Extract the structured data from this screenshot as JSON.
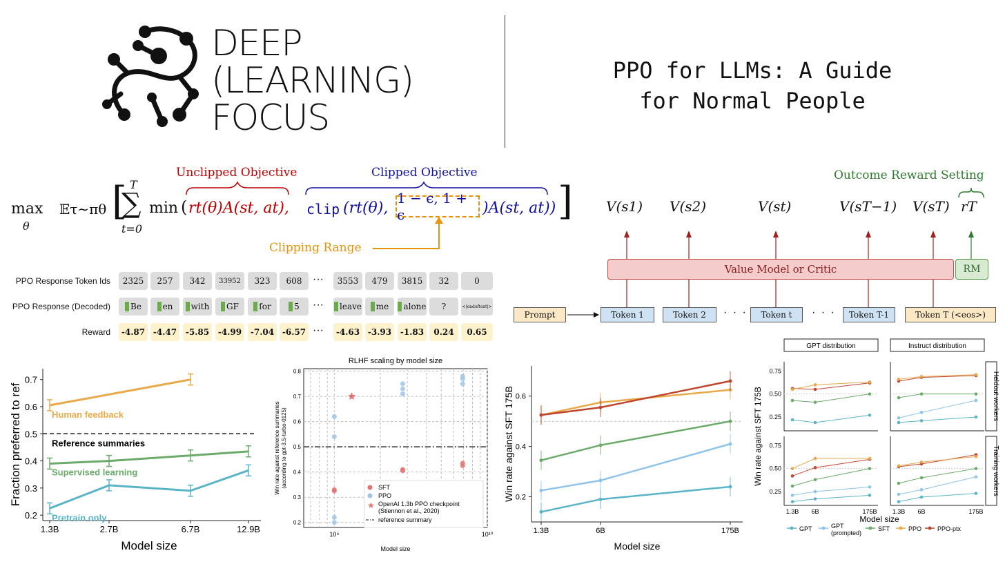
{
  "brand": {
    "logo_lines": [
      "DEEP",
      "(LEARNING)",
      "FOCUS"
    ]
  },
  "title": {
    "line1": "PPO for LLMs: A Guide",
    "line2": "for Normal People"
  },
  "objective": {
    "max": "max",
    "theta": "θ",
    "expectation": "𝔼τ∼πθ",
    "sum_top": "T",
    "sum_bottom": "t=0",
    "min": "min",
    "unclipped_term": "rt(θ)A(st, at),",
    "clip_fn": "clip",
    "clip_arg": "(rt(θ),",
    "clip_range": "1 − ϵ, 1 + ϵ",
    "clipped_tail": ")A(st, at))",
    "unclipped_label": "Unclipped Objective",
    "clipped_label": "Clipped Objective",
    "clipping_range_label": "Clipping Range"
  },
  "tokens": {
    "ids_label": "PPO Response Token Ids",
    "decoded_label": "PPO Response (Decoded)",
    "reward_label": "Reward",
    "ellipsis": "···",
    "ids": [
      "2325",
      "257",
      "342",
      "33952",
      "323",
      "608",
      "3553",
      "479",
      "3815",
      "32",
      "0"
    ],
    "decoded": [
      "Be",
      "en",
      "with",
      "GF",
      "for",
      "5",
      "leave",
      "me",
      "alone",
      "?",
      "<|endoftext|>"
    ],
    "rewards": [
      "-4.87",
      "-4.47",
      "-5.85",
      "-4.99",
      "-7.04",
      "-6.57",
      "-4.63",
      "-3.93",
      "-1.83",
      "0.24",
      "0.65"
    ]
  },
  "value_diagram": {
    "outcome_label": "Outcome Reward Setting",
    "values": [
      "V(s1)",
      "V(s2)",
      "V(st)",
      "V(sT−1)",
      "V(sT)"
    ],
    "reward": "rT",
    "critic_label": "Value Model or Critic",
    "rm_label": "RM",
    "prompt_label": "Prompt",
    "token_boxes": [
      "Token 1",
      "Token 2",
      "Token t",
      "Token T-1",
      "Token T (<eos>)"
    ],
    "dots": "· · ·",
    "colors": {
      "critic_fill": "#f4cccc",
      "rm_fill": "#d9ead3",
      "token_fill": "#cfe2f3",
      "prompt_fill": "#fce8c4"
    }
  },
  "chart_data": [
    {
      "type": "line",
      "id": "fraction-preferred",
      "title": "",
      "xlabel": "Model size",
      "ylabel": "Fraction preferred to ref",
      "categories": [
        "1.3B",
        "2.7B",
        "6.7B",
        "12.9B"
      ],
      "yticks": [
        "0.2",
        "0.3",
        "0.4",
        "0.5",
        "0.6",
        "0.7"
      ],
      "ylim": [
        0.18,
        0.74
      ],
      "reference": {
        "name": "Reference summaries",
        "value": 0.5
      },
      "series": [
        {
          "name": "Human feedback",
          "color": "#e8a94a",
          "values": [
            0.605,
            null,
            0.7,
            null
          ]
        },
        {
          "name": "Supervised learning",
          "color": "#6aab6a",
          "values": [
            0.39,
            0.4,
            0.42,
            0.435
          ]
        },
        {
          "name": "Pretrain only",
          "color": "#5ab4c8",
          "values": [
            0.225,
            0.31,
            0.29,
            0.365
          ]
        }
      ]
    },
    {
      "type": "scatter",
      "id": "rlhf-scaling",
      "title": "RLHF scaling by model size",
      "xlabel": "Model size",
      "ylabel": "Win rate against reference summaries (according to gpt-3.5-turbo-0125)",
      "xticks": [
        "10⁹",
        "10¹⁰"
      ],
      "yticks": [
        "0.2",
        "0.3",
        "0.4",
        "0.5",
        "0.6",
        "0.7",
        "0.8"
      ],
      "ylim": [
        0.18,
        0.81
      ],
      "xlim_log10": [
        8.8,
        10
      ],
      "series": [
        {
          "name": "SFT",
          "color": "#e57373",
          "points": [
            [
              1000000000.0,
              0.33
            ],
            [
              1000000000.0,
              0.325
            ],
            [
              2800000000.0,
              0.41
            ],
            [
              2800000000.0,
              0.405
            ],
            [
              6900000000.0,
              0.435
            ],
            [
              6900000000.0,
              0.425
            ]
          ]
        },
        {
          "name": "PPO",
          "color": "#9ec5e6",
          "points": [
            [
              1000000000.0,
              0.62
            ],
            [
              1000000000.0,
              0.54
            ],
            [
              1000000000.0,
              0.22
            ],
            [
              1000000000.0,
              0.2
            ],
            [
              2800000000.0,
              0.75
            ],
            [
              2800000000.0,
              0.73
            ],
            [
              2800000000.0,
              0.71
            ],
            [
              6900000000.0,
              0.78
            ],
            [
              6900000000.0,
              0.77
            ],
            [
              6900000000.0,
              0.75
            ]
          ]
        },
        {
          "name": "OpenAI 1.3b PPO checkpoint (Stiennon et al., 2020)",
          "color": "#e57373",
          "marker": "star",
          "points": [
            [
              1300000000.0,
              0.7
            ]
          ]
        }
      ],
      "reference": {
        "name": "reference summary",
        "value": 0.5
      },
      "legend_labels": [
        "SFT",
        "PPO",
        "OpenAI 1.3b PPO checkpoint",
        "(Stiennon et al., 2020)",
        "reference summary"
      ]
    },
    {
      "type": "line",
      "id": "win-rate-sft",
      "title": "",
      "xlabel": "Model size",
      "ylabel": "Win rate against SFT 175B",
      "categories": [
        "1.3B",
        "6B",
        "175B"
      ],
      "yticks": [
        "0.2",
        "0.4",
        "0.6"
      ],
      "ylim": [
        0.1,
        0.72
      ],
      "series": [
        {
          "name": "PPO",
          "color": "#e8a94a",
          "values": [
            0.525,
            0.575,
            0.625
          ]
        },
        {
          "name": "PPO-ptx",
          "color": "#c0452f",
          "values": [
            0.525,
            0.555,
            0.66
          ]
        },
        {
          "name": "SFT",
          "color": "#6aab6a",
          "values": [
            0.345,
            0.405,
            0.5
          ]
        },
        {
          "name": "GPT (prompted)",
          "color": "#8ec4e8",
          "values": [
            0.225,
            0.265,
            0.41
          ]
        },
        {
          "name": "GPT",
          "color": "#5ab4c8",
          "values": [
            0.14,
            0.19,
            0.24
          ]
        }
      ]
    },
    {
      "type": "line",
      "id": "distribution-grid",
      "xlabel": "Model size",
      "ylabel": "Win rate against SFT 175B",
      "column_titles": [
        "GPT distribution",
        "Instruct distribution"
      ],
      "row_titles": [
        "Heldout workers",
        "Training workers"
      ],
      "categories": [
        "1.3B",
        "6B",
        "175B"
      ],
      "yticks": [
        "0.25",
        "0.50",
        "0.75"
      ],
      "ylim": [
        0.1,
        0.85
      ],
      "panels": [
        {
          "row": 0,
          "col": 0,
          "series": {
            "PPO-ptx": [
              0.56,
              0.55,
              0.62
            ],
            "PPO": [
              0.55,
              0.6,
              0.63
            ],
            "SFT": [
              0.43,
              0.41,
              0.5
            ],
            "GPT": [
              0.22,
              0.19,
              0.27
            ]
          }
        },
        {
          "row": 0,
          "col": 1,
          "series": {
            "PPO-ptx": [
              0.64,
              0.68,
              0.7
            ],
            "PPO": [
              0.66,
              0.69,
              0.71
            ],
            "SFT": [
              0.46,
              0.5,
              0.5
            ],
            "GPT (prompted)": [
              0.24,
              0.3,
              0.43
            ],
            "GPT": [
              0.19,
              0.21,
              0.25
            ]
          }
        },
        {
          "row": 1,
          "col": 0,
          "series": {
            "PPO-ptx": [
              0.42,
              0.51,
              0.6
            ],
            "PPO": [
              0.5,
              0.61,
              0.61
            ],
            "SFT": [
              0.31,
              0.38,
              0.5
            ],
            "GPT (prompted)": [
              0.21,
              0.25,
              0.3
            ],
            "GPT": [
              0.14,
              0.17,
              0.21
            ]
          }
        },
        {
          "row": 1,
          "col": 1,
          "series": {
            "PPO-ptx": [
              0.52,
              0.55,
              0.65
            ],
            "PPO": [
              0.53,
              0.57,
              0.63
            ],
            "SFT": [
              0.34,
              0.4,
              0.5
            ],
            "GPT (prompted)": [
              0.22,
              0.27,
              0.41
            ],
            "GPT": [
              0.14,
              0.19,
              0.23
            ]
          }
        }
      ],
      "legend": [
        {
          "name": "GPT",
          "color": "#5ab4c8"
        },
        {
          "name": "GPT (prompted)",
          "color": "#8ec4e8"
        },
        {
          "name": "SFT",
          "color": "#6aab6a"
        },
        {
          "name": "PPO",
          "color": "#e8a94a"
        },
        {
          "name": "PPO-ptx",
          "color": "#c0452f"
        }
      ],
      "legend_text": [
        "GPT",
        "GPT",
        "(prompted)",
        "SFT",
        "PPO",
        "PPO-ptx"
      ]
    }
  ]
}
